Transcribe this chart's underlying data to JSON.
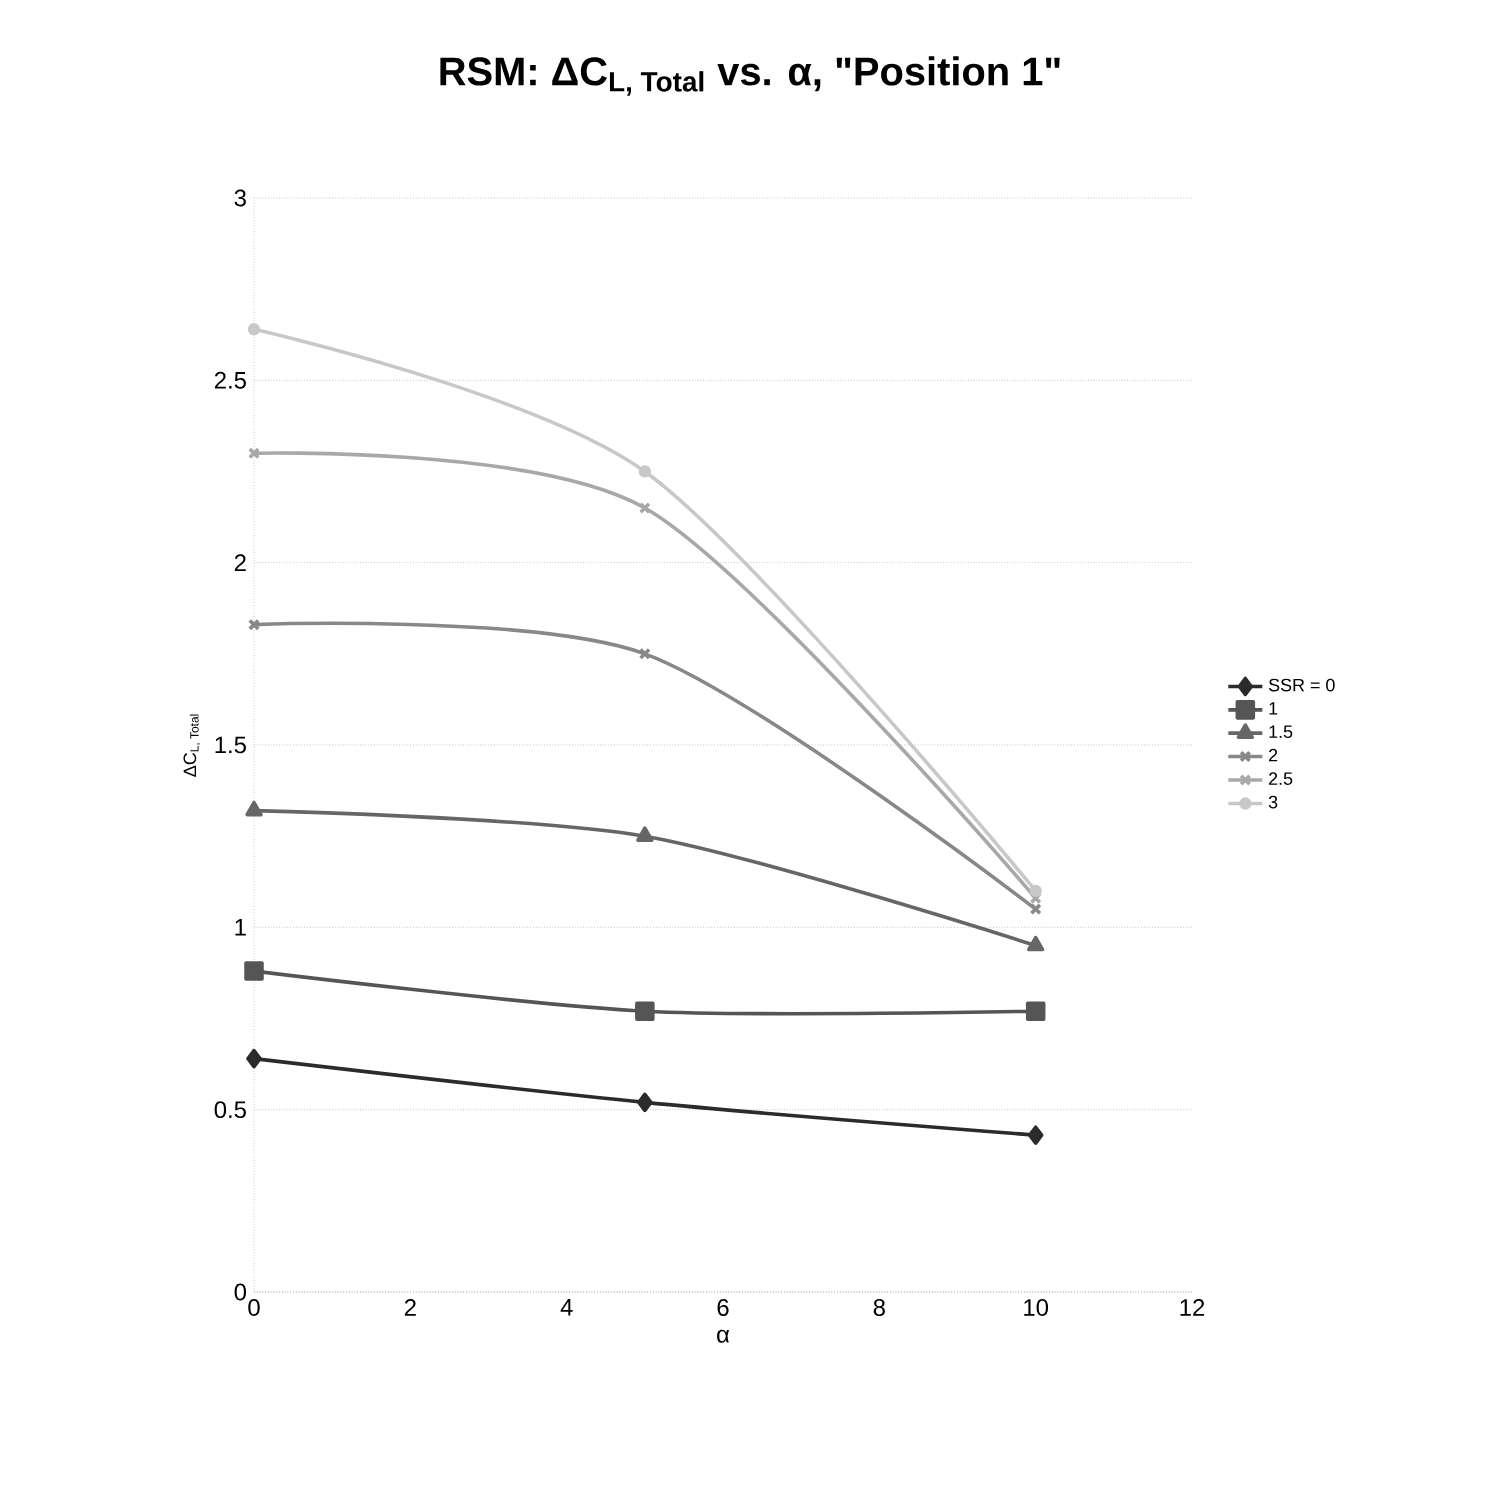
{
  "chart_data": {
    "type": "line",
    "title": "\\text{RSM: ΔC}_{\\text{L, Total}}\\text{ vs. α, \\textquotedbl Position 1\\textquotedbl}",
    "xlabel": "α",
    "ylabel": "\\text{ΔC}_{\\text{L, Total}}",
    "x": [
      0,
      5,
      10
    ],
    "series": [
      {
        "name": "SSR = 0",
        "color": "#2b2b2b",
        "marker": "diamond",
        "values": [
          0.64,
          0.52,
          0.43
        ]
      },
      {
        "name": "1",
        "color": "#555555",
        "marker": "square",
        "values": [
          0.88,
          0.77,
          0.77
        ]
      },
      {
        "name": "1.5",
        "color": "#666666",
        "marker": "triangle",
        "values": [
          1.32,
          1.25,
          0.95
        ]
      },
      {
        "name": "2",
        "color": "#888888",
        "marker": "cross",
        "values": [
          1.83,
          1.75,
          1.05
        ]
      },
      {
        "name": "2.5",
        "color": "#a8a8a8",
        "marker": "cross",
        "values": [
          2.3,
          2.15,
          1.08
        ]
      },
      {
        "name": "3",
        "color": "#c8c8c8",
        "marker": "circle",
        "values": [
          2.64,
          2.25,
          1.1
        ]
      }
    ],
    "xlim": [
      0,
      12
    ],
    "xticks": [
      0,
      2,
      4,
      6,
      8,
      10,
      12
    ],
    "ylim": [
      0,
      3
    ],
    "yticks": [
      0,
      0.5,
      1,
      1.5,
      2,
      2.5,
      3
    ],
    "grid": "y",
    "legend": "right",
    "line_style": "solid"
  }
}
